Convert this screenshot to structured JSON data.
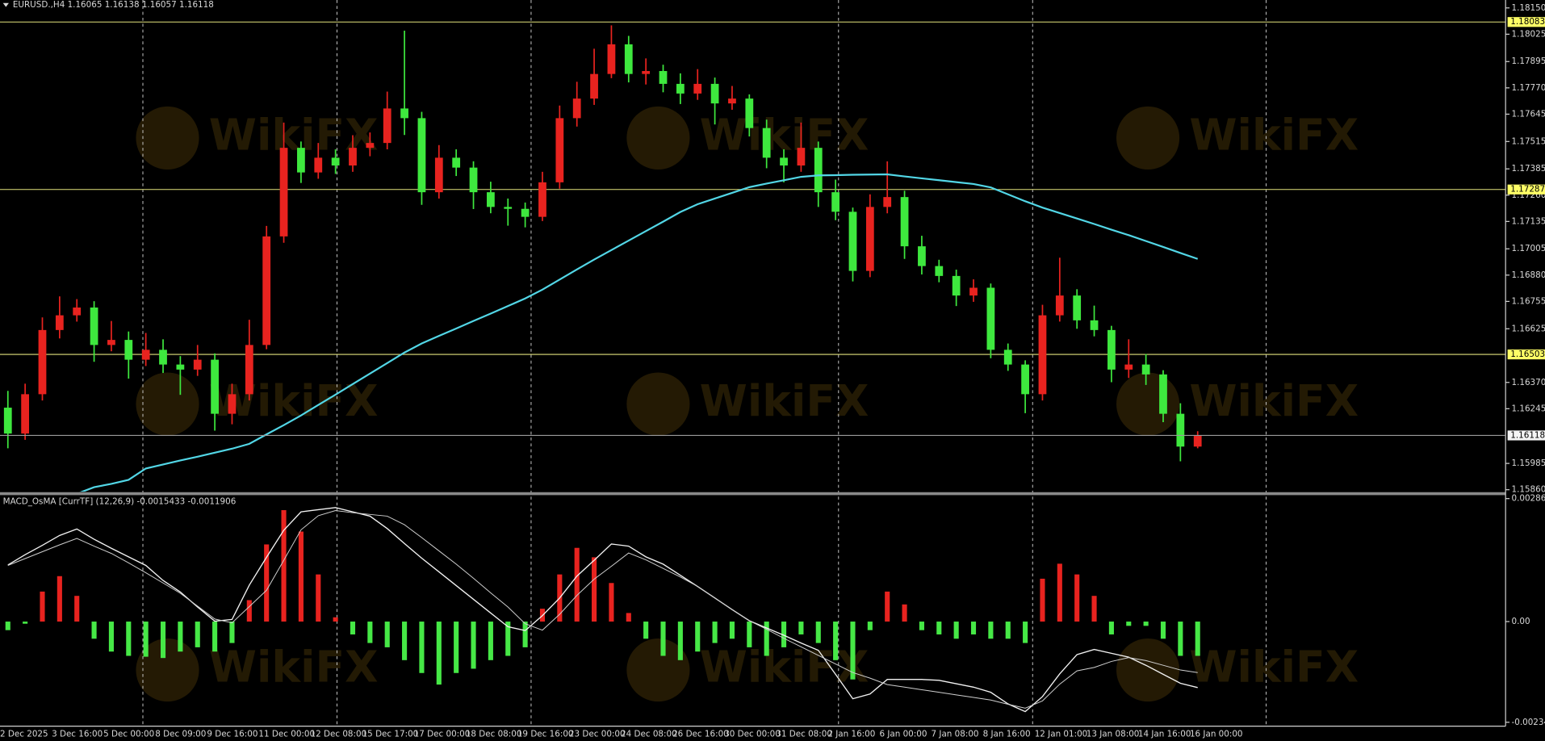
{
  "watermark": "WikiFX",
  "chart_data": [
    {
      "type": "candlestick",
      "title": "EURUSD.,H4  1.16065 1.16138 1.16057 1.16118",
      "categories": [
        "2 Dec 2025",
        null,
        null,
        "3 Dec 16:00",
        null,
        null,
        "5 Dec 00:00",
        null,
        null,
        "8 Dec 09:00",
        null,
        null,
        "9 Dec 16:00",
        null,
        null,
        "11 Dec 00:00",
        null,
        null,
        "12 Dec 08:00",
        null,
        null,
        "15 Dec 17:00",
        null,
        null,
        "17 Dec 00:00",
        null,
        null,
        "18 Dec 08:00",
        null,
        null,
        "19 Dec 16:00",
        null,
        null,
        "23 Dec 00:00",
        null,
        null,
        "24 Dec 08:00",
        null,
        null,
        "26 Dec 16:00",
        null,
        null,
        "30 Dec 00:00",
        null,
        null,
        "31 Dec 08:00",
        null,
        null,
        "2 Jan 16:00",
        null,
        null,
        "6 Jan 00:00",
        null,
        null,
        "7 Jan 08:00",
        null,
        null,
        "8 Jan 16:00",
        null,
        null,
        "12 Jan 01:00",
        null,
        null,
        "13 Jan 08:00",
        null,
        null,
        "14 Jan 16:00",
        null,
        null,
        "16 Jan 00:00"
      ],
      "open": [
        1.1625,
        1.16127,
        1.16314,
        1.16619,
        1.16689,
        1.16726,
        1.16548,
        1.16572,
        1.16478,
        1.16525,
        1.16455,
        1.16431,
        1.16478,
        1.16221,
        1.16314,
        1.16548,
        1.17064,
        1.17485,
        1.17368,
        1.17438,
        1.17401,
        1.17485,
        1.17508,
        1.17672,
        1.17626,
        1.17274,
        1.17438,
        1.17391,
        1.17274,
        1.17204,
        1.17195,
        1.17157,
        1.17321,
        1.17626,
        1.17719,
        1.17836,
        1.17977,
        1.17836,
        1.1785,
        1.17789,
        1.17743,
        1.17789,
        1.17696,
        1.17719,
        1.17579,
        1.17438,
        1.17401,
        1.17485,
        1.17274,
        1.17181,
        1.169,
        1.17204,
        1.17251,
        1.17017,
        1.16923,
        1.16876,
        1.16783,
        1.1682,
        1.16525,
        1.16455,
        1.16314,
        1.16689,
        1.16783,
        1.16665,
        1.16619,
        1.16431,
        1.16455,
        1.16408,
        1.16221,
        1.16065
      ],
      "high": [
        1.1633,
        1.16364,
        1.16679,
        1.16779,
        1.16766,
        1.16756,
        1.16662,
        1.16612,
        1.16605,
        1.16575,
        1.16495,
        1.16548,
        1.16508,
        1.16364,
        1.16668,
        1.17114,
        1.17605,
        1.17515,
        1.17508,
        1.17478,
        1.17545,
        1.17558,
        1.17752,
        1.18042,
        1.17656,
        1.17498,
        1.17478,
        1.17421,
        1.17324,
        1.17244,
        1.17225,
        1.17371,
        1.17686,
        1.17799,
        1.17956,
        1.18067,
        1.18017,
        1.1791,
        1.1788,
        1.17839,
        1.17859,
        1.17819,
        1.17779,
        1.17739,
        1.17619,
        1.17478,
        1.17605,
        1.17515,
        1.17334,
        1.17201,
        1.17264,
        1.17421,
        1.17281,
        1.17067,
        1.16953,
        1.16906,
        1.1686,
        1.1684,
        1.16555,
        1.16475,
        1.16739,
        1.16963,
        1.16813,
        1.16735,
        1.16639,
        1.16575,
        1.16505,
        1.16428,
        1.16271,
        1.16138
      ],
      "low": [
        1.16057,
        1.16097,
        1.16284,
        1.16579,
        1.16659,
        1.16468,
        1.16518,
        1.16388,
        1.16448,
        1.16415,
        1.16311,
        1.16401,
        1.16141,
        1.16171,
        1.16284,
        1.16528,
        1.17034,
        1.17318,
        1.17338,
        1.17361,
        1.17371,
        1.17445,
        1.17478,
        1.17546,
        1.17214,
        1.17244,
        1.17351,
        1.17194,
        1.17174,
        1.17115,
        1.17107,
        1.17137,
        1.17291,
        1.17586,
        1.17689,
        1.17816,
        1.17796,
        1.17786,
        1.17749,
        1.17693,
        1.17713,
        1.17596,
        1.17666,
        1.17539,
        1.17388,
        1.17321,
        1.17371,
        1.17204,
        1.17141,
        1.1685,
        1.1687,
        1.17174,
        1.16957,
        1.16883,
        1.16846,
        1.16733,
        1.16753,
        1.16485,
        1.16425,
        1.16224,
        1.16284,
        1.16659,
        1.16625,
        1.16589,
        1.16371,
        1.16391,
        1.16358,
        1.16181,
        1.15995,
        1.16057
      ],
      "close": [
        1.16127,
        1.16314,
        1.16619,
        1.16689,
        1.16726,
        1.16548,
        1.16572,
        1.16478,
        1.16525,
        1.16455,
        1.16431,
        1.16478,
        1.16221,
        1.16314,
        1.16548,
        1.17064,
        1.17485,
        1.17368,
        1.17438,
        1.17401,
        1.17485,
        1.17508,
        1.17672,
        1.17626,
        1.17274,
        1.17438,
        1.17391,
        1.17274,
        1.17204,
        1.17195,
        1.17157,
        1.17321,
        1.17626,
        1.17719,
        1.17836,
        1.17977,
        1.17836,
        1.1785,
        1.17789,
        1.17743,
        1.17789,
        1.17696,
        1.17719,
        1.17579,
        1.17438,
        1.17401,
        1.17485,
        1.17274,
        1.17181,
        1.169,
        1.17204,
        1.17251,
        1.17017,
        1.16923,
        1.16876,
        1.16783,
        1.1682,
        1.16525,
        1.16455,
        1.16314,
        1.16689,
        1.16783,
        1.16665,
        1.16619,
        1.16431,
        1.16455,
        1.16408,
        1.16221,
        1.16065,
        1.16118
      ],
      "up_color": "#e8231f",
      "down_color": "#3ee83e",
      "moving_average": {
        "color": "#52d6e6",
        "values": [
          null,
          null,
          null,
          null,
          1.15841,
          1.15872,
          1.15888,
          1.15907,
          1.15961,
          1.1598,
          1.15999,
          1.16017,
          1.16036,
          1.16055,
          1.16078,
          1.16123,
          1.16167,
          1.16213,
          1.16263,
          1.16312,
          1.16362,
          1.16412,
          1.16462,
          1.16512,
          1.16555,
          1.16591,
          1.16626,
          1.16662,
          1.16697,
          1.16733,
          1.16769,
          1.16811,
          1.16859,
          1.16907,
          1.16954,
          1.16999,
          1.17044,
          1.17089,
          1.17134,
          1.1718,
          1.17217,
          1.17244,
          1.17271,
          1.17298,
          1.17315,
          1.17331,
          1.17347,
          1.17354,
          1.17355,
          1.17357,
          1.17358,
          1.17359,
          1.17349,
          1.1734,
          1.17331,
          1.17322,
          1.17313,
          1.17297,
          1.17264,
          1.17231,
          1.17201,
          1.17175,
          1.17149,
          1.17123,
          1.17096,
          1.1707,
          1.17042,
          1.17014,
          1.16985,
          1.16957
        ]
      },
      "hlines": [
        {
          "value": 1.18083,
          "color": "#e2e27c"
        },
        {
          "value": 1.17287,
          "color": "#e2e27c"
        },
        {
          "value": 1.16503,
          "color": "#e2e27c"
        }
      ],
      "ylim": [
        1.1586,
        1.1815
      ],
      "yticks": [
        {
          "value": 1.1815,
          "label": "1.18150"
        },
        1.18025,
        1.17895,
        {
          "value": 1.1777,
          "label": "1.17770"
        },
        1.17645,
        1.17515,
        1.17385,
        {
          "value": 1.1726,
          "label": "1.17260"
        },
        1.17135,
        1.17005,
        {
          "value": 1.1688,
          "label": "1.16880"
        },
        1.16755,
        1.16625,
        {
          "value": 1.1637,
          "label": "1.16370"
        },
        1.16245,
        1.15985,
        {
          "value": 1.1586,
          "label": "1.15860"
        }
      ]
    },
    {
      "type": "osma",
      "title": "MACD_OsMA [CurrTF] (12,26,9) -0.0015433 -0.0011906",
      "histogram": {
        "pos_color": "#e8231f",
        "neg_color": "#46e846",
        "values": [
          -0.0002,
          -5e-05,
          0.0007,
          0.00106,
          0.0006,
          -0.0004,
          -0.0007,
          -0.0008,
          -0.00082,
          -0.00085,
          -0.0007,
          -0.0006,
          -0.0007,
          -0.0005,
          0.0005,
          0.0018,
          0.0026,
          0.0021,
          0.0011,
          0.0001,
          -0.0003,
          -0.0005,
          -0.0006,
          -0.0009,
          -0.0012,
          -0.00147,
          -0.0012,
          -0.0011,
          -0.0009,
          -0.0008,
          -0.0006,
          0.0003,
          0.0011,
          0.00172,
          0.0015,
          0.0009,
          0.0002,
          -0.0004,
          -0.0008,
          -0.0009,
          -0.0007,
          -0.0005,
          -0.0004,
          -0.0006,
          -0.0008,
          -0.0006,
          -0.0003,
          -0.0005,
          -0.0009,
          -0.00135,
          -0.0002,
          0.0007,
          0.0004,
          -0.0002,
          -0.0003,
          -0.0004,
          -0.0003,
          -0.0004,
          -0.0004,
          -0.0005,
          0.001,
          0.00135,
          0.0011,
          0.0006,
          -0.0003,
          -0.0001,
          -0.0001,
          -0.0004,
          -0.0008,
          -0.0008
        ]
      },
      "series": [
        {
          "color": "#f2f2f2",
          "values": [
            0.00132,
            0.00156,
            0.00178,
            0.00201,
            0.00216,
            0.00192,
            0.00171,
            0.00151,
            0.00131,
            0.00096,
            0.00069,
            0.00034,
            1e-05,
            5e-05,
            0.00085,
            0.0015,
            0.00213,
            0.00256,
            0.00261,
            0.00266,
            0.00256,
            0.00246,
            0.00217,
            0.00182,
            0.00148,
            0.00116,
            0.00084,
            0.00052,
            0.0002,
            -0.00012,
            -0.00021,
            0.00014,
            0.00055,
            0.00106,
            0.00143,
            0.00181,
            0.00176,
            0.00151,
            0.00134,
            0.00108,
            0.00082,
            0.00055,
            0.00028,
            2e-05,
            -0.00015,
            -0.00032,
            -0.0005,
            -0.00067,
            -0.00123,
            -0.0018,
            -0.00169,
            -0.00135,
            -0.00135,
            -0.00135,
            -0.00137,
            -0.00145,
            -0.00153,
            -0.00165,
            -0.00192,
            -0.0021,
            -0.00175,
            -0.00122,
            -0.00077,
            -0.00065,
            -0.00074,
            -0.00083,
            -0.00102,
            -0.00123,
            -0.00144,
            -0.00154
          ]
        },
        {
          "color": "#cfcfcf",
          "values": [
            0.00131,
            0.00147,
            0.00163,
            0.00179,
            0.00194,
            0.00176,
            0.00159,
            0.00137,
            0.00114,
            0.0009,
            0.00066,
            0.00036,
            6e-05,
            -3e-05,
            0.00035,
            0.00073,
            0.00143,
            0.00214,
            0.00247,
            0.00259,
            0.00254,
            0.0025,
            0.00246,
            0.00226,
            0.00196,
            0.00165,
            0.00134,
            0.00101,
            0.00067,
            0.00034,
            -5e-05,
            -0.0002,
            0.00017,
            0.00061,
            0.00099,
            0.00129,
            0.0016,
            0.00144,
            0.00124,
            0.00104,
            0.00082,
            0.00055,
            0.00028,
            2e-05,
            -0.00018,
            -0.00039,
            -0.00059,
            -0.00079,
            -0.00099,
            -0.00119,
            -0.00132,
            -0.00147,
            -0.00153,
            -0.00159,
            -0.00165,
            -0.00171,
            -0.00177,
            -0.00183,
            -0.00193,
            -0.00202,
            -0.00185,
            -0.00146,
            -0.00115,
            -0.00107,
            -0.00093,
            -0.00084,
            -0.00091,
            -0.00102,
            -0.00113,
            -0.00119
          ]
        }
      ],
      "ylim": [
        -0.002349,
        0.0028694
      ],
      "yticks": [
        0.0028694,
        {
          "value": 0,
          "label": "0.00"
        },
        -0.002349
      ]
    }
  ]
}
